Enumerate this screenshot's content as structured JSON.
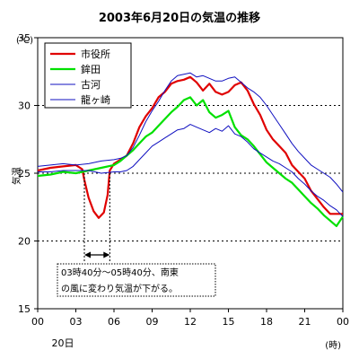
{
  "chart_data": {
    "type": "line",
    "title": "2003年6月20日の気温の推移",
    "unit_label": "(℃)",
    "ylabel": "気温",
    "xlabel": "(時)",
    "date_label": "20日",
    "x_range": [
      0,
      24
    ],
    "ylim": [
      15,
      35
    ],
    "x_ticks": [
      "00",
      "03",
      "06",
      "09",
      "12",
      "15",
      "18",
      "21",
      "00"
    ],
    "y_ticks": [
      "15",
      "20",
      "25",
      "30",
      "35"
    ],
    "grid": "dashed horizontal lines at 20, 25, 30",
    "legend_position": "top-left",
    "annotation": {
      "line1": "03時40分～05時40分、南東",
      "line2": "の風に変わり気温が下がる。",
      "span_start": 3.67,
      "span_end": 5.67
    },
    "series": [
      {
        "name": "市役所",
        "color": "#e00000",
        "points": [
          [
            0,
            25.2
          ],
          [
            1,
            25.4
          ],
          [
            2,
            25.5
          ],
          [
            3,
            25.6
          ],
          [
            3.5,
            25.3
          ],
          [
            3.67,
            24.5
          ],
          [
            4,
            23.2
          ],
          [
            4.4,
            22.2
          ],
          [
            4.8,
            21.7
          ],
          [
            5.2,
            22.1
          ],
          [
            5.5,
            23.4
          ],
          [
            5.67,
            25.2
          ],
          [
            6,
            25.7
          ],
          [
            6.5,
            26.0
          ],
          [
            7,
            26.3
          ],
          [
            7.5,
            27.2
          ],
          [
            8,
            28.4
          ],
          [
            8.5,
            29.2
          ],
          [
            9,
            29.8
          ],
          [
            9.5,
            30.6
          ],
          [
            10,
            31.0
          ],
          [
            10.5,
            31.6
          ],
          [
            11,
            31.8
          ],
          [
            11.5,
            31.9
          ],
          [
            12,
            32.1
          ],
          [
            12.5,
            31.7
          ],
          [
            13,
            31.1
          ],
          [
            13.5,
            31.6
          ],
          [
            14,
            31.0
          ],
          [
            14.5,
            30.8
          ],
          [
            15,
            31.0
          ],
          [
            15.5,
            31.5
          ],
          [
            16,
            31.7
          ],
          [
            16.5,
            31.1
          ],
          [
            17,
            30.1
          ],
          [
            17.5,
            29.3
          ],
          [
            18,
            28.2
          ],
          [
            18.5,
            27.5
          ],
          [
            19,
            27.0
          ],
          [
            19.5,
            26.5
          ],
          [
            20,
            25.6
          ],
          [
            20.5,
            25.1
          ],
          [
            21,
            24.6
          ],
          [
            21.5,
            23.7
          ],
          [
            22,
            23.1
          ],
          [
            22.5,
            22.5
          ],
          [
            23,
            22.0
          ],
          [
            24,
            22.0
          ]
        ]
      },
      {
        "name": "鉾田",
        "color": "#00e000",
        "points": [
          [
            0,
            24.8
          ],
          [
            1,
            24.9
          ],
          [
            2,
            25.1
          ],
          [
            3,
            25.0
          ],
          [
            4,
            25.2
          ],
          [
            5,
            25.4
          ],
          [
            6,
            25.6
          ],
          [
            6.5,
            25.9
          ],
          [
            7,
            26.3
          ],
          [
            7.5,
            26.7
          ],
          [
            8,
            27.2
          ],
          [
            8.5,
            27.7
          ],
          [
            9,
            28.0
          ],
          [
            9.5,
            28.5
          ],
          [
            10,
            29.0
          ],
          [
            10.5,
            29.5
          ],
          [
            11,
            29.9
          ],
          [
            11.5,
            30.4
          ],
          [
            12,
            30.6
          ],
          [
            12.5,
            30.0
          ],
          [
            13,
            30.4
          ],
          [
            13.5,
            29.5
          ],
          [
            14,
            29.1
          ],
          [
            14.5,
            29.3
          ],
          [
            15,
            29.6
          ],
          [
            15.5,
            28.4
          ],
          [
            16,
            27.8
          ],
          [
            16.5,
            27.5
          ],
          [
            17,
            27.0
          ],
          [
            17.5,
            26.4
          ],
          [
            18,
            25.8
          ],
          [
            18.5,
            25.4
          ],
          [
            19,
            25.0
          ],
          [
            19.5,
            24.6
          ],
          [
            20,
            24.3
          ],
          [
            20.5,
            23.8
          ],
          [
            21,
            23.3
          ],
          [
            21.5,
            22.8
          ],
          [
            22,
            22.4
          ],
          [
            22.5,
            21.9
          ],
          [
            23,
            21.5
          ],
          [
            23.5,
            21.1
          ],
          [
            24,
            21.8
          ]
        ]
      },
      {
        "name": "古河",
        "color": "#1010c0",
        "points": [
          [
            0,
            25.5
          ],
          [
            1,
            25.6
          ],
          [
            2,
            25.7
          ],
          [
            3,
            25.6
          ],
          [
            4,
            25.7
          ],
          [
            5,
            25.9
          ],
          [
            6,
            26.0
          ],
          [
            6.5,
            26.1
          ],
          [
            7,
            26.3
          ],
          [
            7.5,
            26.9
          ],
          [
            8,
            27.8
          ],
          [
            8.5,
            28.8
          ],
          [
            9,
            29.6
          ],
          [
            9.5,
            30.3
          ],
          [
            10,
            31.1
          ],
          [
            10.5,
            31.8
          ],
          [
            11,
            32.2
          ],
          [
            11.5,
            32.3
          ],
          [
            12,
            32.4
          ],
          [
            12.5,
            32.1
          ],
          [
            13,
            32.2
          ],
          [
            13.5,
            32.0
          ],
          [
            14,
            31.8
          ],
          [
            14.5,
            31.8
          ],
          [
            15,
            32.0
          ],
          [
            15.5,
            32.1
          ],
          [
            16,
            31.7
          ],
          [
            16.5,
            31.3
          ],
          [
            17,
            31.0
          ],
          [
            17.5,
            30.6
          ],
          [
            18,
            30.0
          ],
          [
            18.5,
            29.3
          ],
          [
            19,
            28.6
          ],
          [
            19.5,
            27.9
          ],
          [
            20,
            27.2
          ],
          [
            20.5,
            26.6
          ],
          [
            21,
            26.1
          ],
          [
            21.5,
            25.6
          ],
          [
            22,
            25.3
          ],
          [
            22.5,
            25.0
          ],
          [
            23,
            24.7
          ],
          [
            23.5,
            24.2
          ],
          [
            24,
            23.6
          ]
        ]
      },
      {
        "name": "龍ヶ崎",
        "color": "#1010c0",
        "points": [
          [
            0,
            25.1
          ],
          [
            1,
            25.1
          ],
          [
            2,
            25.2
          ],
          [
            3,
            25.2
          ],
          [
            4,
            25.2
          ],
          [
            5,
            25.0
          ],
          [
            6,
            25.1
          ],
          [
            6.5,
            25.1
          ],
          [
            7,
            25.2
          ],
          [
            7.5,
            25.5
          ],
          [
            8,
            26.0
          ],
          [
            8.5,
            26.5
          ],
          [
            9,
            27.0
          ],
          [
            9.5,
            27.3
          ],
          [
            10,
            27.6
          ],
          [
            10.5,
            27.9
          ],
          [
            11,
            28.2
          ],
          [
            11.5,
            28.3
          ],
          [
            12,
            28.6
          ],
          [
            12.5,
            28.4
          ],
          [
            13,
            28.2
          ],
          [
            13.5,
            28.0
          ],
          [
            14,
            28.3
          ],
          [
            14.5,
            28.1
          ],
          [
            15,
            28.5
          ],
          [
            15.5,
            27.9
          ],
          [
            16,
            27.7
          ],
          [
            16.5,
            27.3
          ],
          [
            17,
            26.8
          ],
          [
            17.5,
            26.5
          ],
          [
            18,
            26.2
          ],
          [
            18.5,
            25.9
          ],
          [
            19,
            25.7
          ],
          [
            19.5,
            25.4
          ],
          [
            20,
            25.1
          ],
          [
            20.5,
            24.6
          ],
          [
            21,
            24.2
          ],
          [
            21.5,
            23.7
          ],
          [
            22,
            23.3
          ],
          [
            22.5,
            23.0
          ],
          [
            23,
            22.6
          ],
          [
            23.5,
            22.3
          ],
          [
            24,
            21.8
          ]
        ]
      }
    ]
  }
}
